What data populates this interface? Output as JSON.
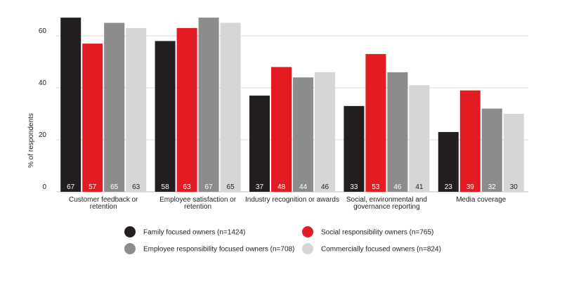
{
  "chart_data": {
    "type": "bar",
    "title": "",
    "xlabel": "",
    "ylabel": "% of respondents",
    "ylim": [
      0,
      70
    ],
    "yticks": [
      0,
      20,
      40,
      60
    ],
    "grid": true,
    "legend_position": "bottom",
    "categories": [
      [
        "Customer feedback or",
        "retention"
      ],
      [
        "Employee satisfaction or",
        "retention"
      ],
      [
        "Industry recognition or awards"
      ],
      [
        "Social, environmental and",
        "governance reporting"
      ],
      [
        "Media coverage"
      ]
    ],
    "series": [
      {
        "name": "Family focused owners (n=1424)",
        "color": "#231f20",
        "label_color": "#ffffff",
        "values": [
          67,
          58,
          37,
          33,
          23
        ]
      },
      {
        "name": "Social responsibility owners (n=765)",
        "color": "#e31b23",
        "label_color": "#ffffff",
        "values": [
          57,
          63,
          48,
          53,
          39
        ]
      },
      {
        "name": "Employee responsibility focused owners (n=708)",
        "color": "#8c8c8c",
        "label_color": "#ffffff",
        "values": [
          65,
          67,
          44,
          46,
          32
        ]
      },
      {
        "name": "Commercially focused owners (n=824)",
        "color": "#d6d6d6",
        "label_color": "#222222",
        "values": [
          63,
          65,
          46,
          41,
          30
        ]
      }
    ]
  }
}
